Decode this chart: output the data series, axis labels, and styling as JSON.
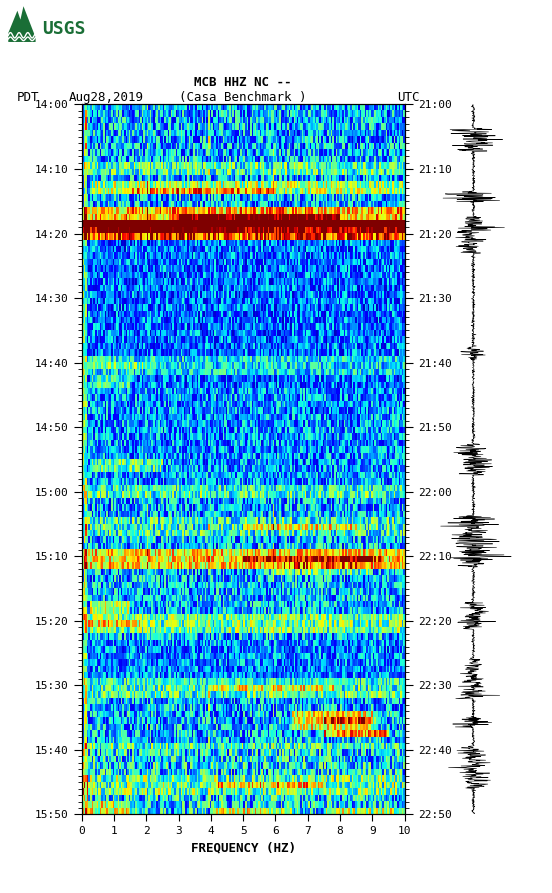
{
  "title_line1": "MCB HHZ NC --",
  "title_line2": "(Casa Benchmark )",
  "date_label": "Aug28,2019",
  "tz_left": "PDT",
  "tz_right": "UTC",
  "freq_label": "FREQUENCY (HZ)",
  "freq_min": 0,
  "freq_max": 10,
  "freq_ticks": [
    0,
    1,
    2,
    3,
    4,
    5,
    6,
    7,
    8,
    9,
    10
  ],
  "time_left_labels": [
    "14:00",
    "14:10",
    "14:20",
    "14:30",
    "14:40",
    "14:50",
    "15:00",
    "15:10",
    "15:20",
    "15:30",
    "15:40",
    "15:50"
  ],
  "time_right_labels": [
    "21:00",
    "21:10",
    "21:20",
    "21:30",
    "21:40",
    "21:50",
    "22:00",
    "22:10",
    "22:20",
    "22:30",
    "22:40",
    "22:50"
  ],
  "background_color": "#ffffff",
  "n_time": 110,
  "n_freq": 200,
  "fig_width": 5.52,
  "fig_height": 8.93,
  "dpi": 100,
  "logo_color": "#1a6e36"
}
